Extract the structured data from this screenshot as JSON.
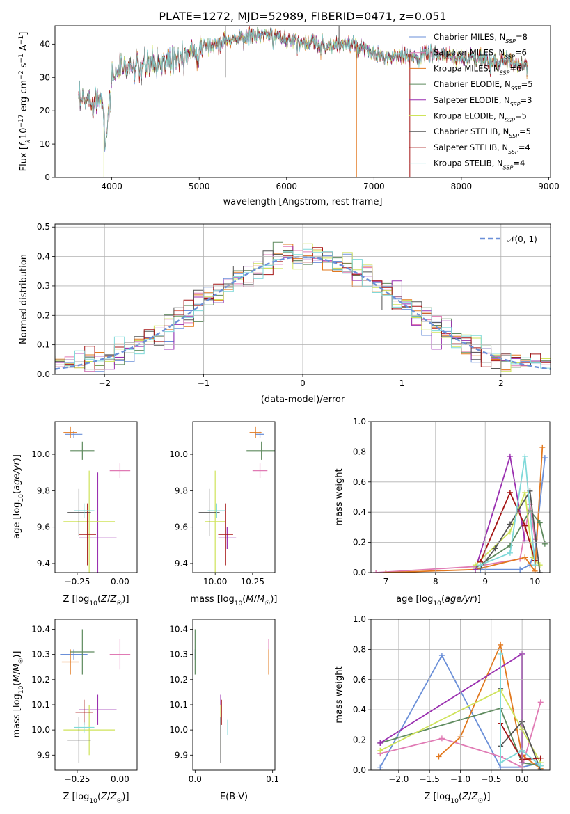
{
  "title": "PLATE=1272, MJD=52989, FIBERID=0471, z=0.051",
  "colors": {
    "Chabrier MILES": "#6a8fd8",
    "Salpeter MILES": "#e07ab4",
    "Kroupa MILES": "#e2781e",
    "Chabrier ELODIE": "#5e8a5e",
    "Salpeter ELODIE": "#9a2fb0",
    "Kroupa ELODIE": "#cfe35a",
    "Chabrier STELIB": "#555555",
    "Salpeter STELIB": "#a51515",
    "Kroupa STELIB": "#7fd9d9"
  },
  "chart_data": [
    {
      "id": "spectrum",
      "type": "line",
      "xlabel": "wavelength [Angstrom, rest frame]",
      "ylabel": "Flux [f_λ 10^-17 erg cm^-2 s^-1 A^-1]",
      "xlim": [
        3350,
        9020
      ],
      "ylim": [
        0,
        45.5
      ],
      "xticks": [
        4000,
        5000,
        6000,
        7000,
        8000,
        9000
      ],
      "yticks": [
        0,
        10,
        20,
        30,
        40
      ],
      "legend_position": "top-right",
      "legend": [
        {
          "name": "Chabrier MILES, N_SSP=8"
        },
        {
          "name": "Salpeter MILES, N_SSP=6"
        },
        {
          "name": "Kroupa MILES, N_SSP=6"
        },
        {
          "name": "Chabrier ELODIE, N_SSP=5"
        },
        {
          "name": "Salpeter ELODIE, N_SSP=3"
        },
        {
          "name": "Kroupa ELODIE, N_SSP=5"
        },
        {
          "name": "Chabrier STELIB, N_SSP=5"
        },
        {
          "name": "Salpeter STELIB, N_SSP=4"
        },
        {
          "name": "Kroupa STELIB, N_SSP=4"
        }
      ],
      "continuum_x": [
        3620,
        3700,
        3800,
        3900,
        3930,
        4000,
        4100,
        4300,
        4500,
        4700,
        4900,
        5100,
        5300,
        5500,
        5700,
        5900,
        6100,
        6300,
        6500,
        6700,
        6900,
        7100,
        7300,
        7500,
        7700,
        7900,
        8100,
        8300,
        8500,
        8760
      ],
      "continuum_y": [
        22,
        23,
        23.5,
        24,
        9,
        30,
        33,
        33,
        34,
        36,
        38,
        39,
        41,
        42,
        43,
        42,
        41,
        40,
        39.5,
        40,
        38,
        36,
        36,
        36.5,
        37,
        36,
        35.5,
        35,
        34.5,
        34
      ]
    },
    {
      "id": "residuals",
      "type": "histogram",
      "xlabel": "(data-model)/error",
      "ylabel": "Normed distribution",
      "xlim": [
        -2.5,
        2.5
      ],
      "ylim": [
        0,
        0.51
      ],
      "xticks": [
        -2,
        -1,
        0,
        1,
        2
      ],
      "yticks": [
        0.0,
        0.1,
        0.2,
        0.3,
        0.4,
        0.5
      ],
      "legend_position": "top-right",
      "legend": [
        {
          "name": "𝒩(0, 1)"
        }
      ],
      "bin_width": 0.1
    },
    {
      "id": "age-vs-Z",
      "type": "errorbar",
      "xlabel": "Z [log10(Z/Z☉)]",
      "ylabel": "age [log10(age/yr)]",
      "xlim": [
        -0.38,
        0.1
      ],
      "ylim": [
        9.35,
        10.18
      ],
      "xticks": [
        -0.25,
        0.0
      ],
      "yticks": [
        9.4,
        9.6,
        9.8,
        10.0
      ],
      "points": [
        {
          "name": "Chabrier MILES",
          "x": -0.27,
          "y": 10.11,
          "xerr": 0.05,
          "yerr": 0.02
        },
        {
          "name": "Salpeter MILES",
          "x": 0.0,
          "y": 9.91,
          "xerr": 0.06,
          "yerr": 0.04
        },
        {
          "name": "Kroupa MILES",
          "x": -0.29,
          "y": 10.12,
          "xerr": 0.04,
          "yerr": 0.03
        },
        {
          "name": "Chabrier ELODIE",
          "x": -0.22,
          "y": 10.02,
          "xerr": 0.07,
          "yerr": 0.05
        },
        {
          "name": "Salpeter ELODIE",
          "x": -0.13,
          "y": 9.54,
          "xerr": 0.11,
          "yerr": 0.36
        },
        {
          "name": "Kroupa ELODIE",
          "x": -0.18,
          "y": 9.63,
          "xerr": 0.15,
          "yerr": 0.28
        },
        {
          "name": "Chabrier STELIB",
          "x": -0.24,
          "y": 9.68,
          "xerr": 0.07,
          "yerr": 0.13
        },
        {
          "name": "Salpeter STELIB",
          "x": -0.19,
          "y": 9.56,
          "xerr": 0.05,
          "yerr": 0.17
        },
        {
          "name": "Kroupa STELIB",
          "x": -0.21,
          "y": 9.69,
          "xerr": 0.06,
          "yerr": 0.04
        }
      ]
    },
    {
      "id": "age-vs-mass",
      "type": "errorbar",
      "xlabel": "mass [log10(M/M☉)]",
      "xlim": [
        9.85,
        10.4
      ],
      "ylim": [
        9.35,
        10.18
      ],
      "xticks": [
        10.0,
        10.25
      ],
      "yticks": [
        9.4,
        9.6,
        9.8,
        10.0
      ],
      "points": [
        {
          "name": "Chabrier MILES",
          "x": 10.3,
          "y": 10.11,
          "xerr": 0.03,
          "yerr": 0.02
        },
        {
          "name": "Salpeter MILES",
          "x": 10.3,
          "y": 9.91,
          "xerr": 0.05,
          "yerr": 0.04
        },
        {
          "name": "Kroupa MILES",
          "x": 10.27,
          "y": 10.12,
          "xerr": 0.04,
          "yerr": 0.03
        },
        {
          "name": "Chabrier ELODIE",
          "x": 10.31,
          "y": 10.02,
          "xerr": 0.1,
          "yerr": 0.05
        },
        {
          "name": "Salpeter ELODIE",
          "x": 10.08,
          "y": 9.54,
          "xerr": 0.06,
          "yerr": 0.06
        },
        {
          "name": "Kroupa ELODIE",
          "x": 10.0,
          "y": 9.63,
          "xerr": 0.07,
          "yerr": 0.28
        },
        {
          "name": "Chabrier STELIB",
          "x": 9.96,
          "y": 9.68,
          "xerr": 0.07,
          "yerr": 0.13
        },
        {
          "name": "Salpeter STELIB",
          "x": 10.07,
          "y": 9.56,
          "xerr": 0.05,
          "yerr": 0.17
        },
        {
          "name": "Kroupa STELIB",
          "x": 10.01,
          "y": 9.69,
          "xerr": 0.06,
          "yerr": 0.04
        }
      ]
    },
    {
      "id": "massweight-vs-age",
      "type": "line",
      "xlabel": "age [log10(age/yr)]",
      "ylabel": "mass weight",
      "xlim": [
        6.7,
        10.3
      ],
      "ylim": [
        0,
        1.0
      ],
      "xticks": [
        7,
        8,
        9,
        10
      ],
      "yticks": [
        0.0,
        0.2,
        0.4,
        0.6,
        0.8,
        1.0
      ],
      "grid": true,
      "series": [
        {
          "name": "Chabrier MILES",
          "x": [
            8.9,
            9.7,
            9.9,
            10.0,
            10.2
          ],
          "y": [
            0.02,
            0.02,
            0.05,
            0.15,
            0.76
          ]
        },
        {
          "name": "Salpeter MILES",
          "x": [
            6.8,
            8.8,
            9.7,
            9.9,
            10.0
          ],
          "y": [
            0.0,
            0.04,
            0.09,
            0.45,
            0.22
          ]
        },
        {
          "name": "Kroupa MILES",
          "x": [
            7.0,
            8.8,
            9.8,
            10.0,
            10.15
          ],
          "y": [
            0.0,
            0.02,
            0.1,
            0.01,
            0.83
          ]
        },
        {
          "name": "Chabrier ELODIE",
          "x": [
            8.8,
            9.5,
            9.9,
            10.1,
            10.2
          ],
          "y": [
            0.03,
            0.18,
            0.41,
            0.33,
            0.19
          ]
        },
        {
          "name": "Salpeter ELODIE",
          "x": [
            8.8,
            9.5,
            9.8
          ],
          "y": [
            0.02,
            0.77,
            0.21
          ]
        },
        {
          "name": "Kroupa ELODIE",
          "x": [
            8.8,
            9.5,
            9.8,
            9.95,
            10.1
          ],
          "y": [
            0.05,
            0.27,
            0.53,
            0.1,
            0.05
          ]
        },
        {
          "name": "Chabrier STELIB",
          "x": [
            8.9,
            9.2,
            9.5,
            9.9,
            10.1
          ],
          "y": [
            0.03,
            0.16,
            0.32,
            0.54,
            0.0
          ]
        },
        {
          "name": "Salpeter STELIB",
          "x": [
            8.9,
            9.5,
            9.8,
            10.0
          ],
          "y": [
            0.07,
            0.53,
            0.31,
            0.08
          ]
        },
        {
          "name": "Kroupa STELIB",
          "x": [
            8.9,
            9.5,
            9.8,
            10.0
          ],
          "y": [
            0.05,
            0.13,
            0.77,
            0.05
          ]
        }
      ]
    },
    {
      "id": "mass-vs-Z",
      "type": "errorbar",
      "xlabel": "Z [log10(Z/Z☉)]",
      "ylabel": "mass [log10(M/M☉)]",
      "xlim": [
        -0.38,
        0.1
      ],
      "ylim": [
        9.84,
        10.44
      ],
      "xticks": [
        -0.25,
        0.0
      ],
      "yticks": [
        9.9,
        10.0,
        10.1,
        10.2,
        10.3,
        10.4
      ],
      "points": [
        {
          "name": "Chabrier MILES",
          "x": -0.27,
          "y": 10.3,
          "xerr": 0.08,
          "yerr": 0.02
        },
        {
          "name": "Salpeter MILES",
          "x": 0.0,
          "y": 10.3,
          "xerr": 0.06,
          "yerr": 0.06
        },
        {
          "name": "Kroupa MILES",
          "x": -0.29,
          "y": 10.27,
          "xerr": 0.05,
          "yerr": 0.05
        },
        {
          "name": "Chabrier ELODIE",
          "x": -0.22,
          "y": 10.31,
          "xerr": 0.07,
          "yerr": 0.09
        },
        {
          "name": "Salpeter ELODIE",
          "x": -0.13,
          "y": 10.08,
          "xerr": 0.11,
          "yerr": 0.06
        },
        {
          "name": "Kroupa ELODIE",
          "x": -0.18,
          "y": 10.0,
          "xerr": 0.15,
          "yerr": 0.1
        },
        {
          "name": "Chabrier STELIB",
          "x": -0.24,
          "y": 9.96,
          "xerr": 0.07,
          "yerr": 0.09
        },
        {
          "name": "Salpeter STELIB",
          "x": -0.21,
          "y": 10.07,
          "xerr": 0.05,
          "yerr": 0.05
        },
        {
          "name": "Kroupa STELIB",
          "x": -0.21,
          "y": 10.01,
          "xerr": 0.06,
          "yerr": 0.02
        }
      ]
    },
    {
      "id": "mass-vs-ebv",
      "type": "errorbar",
      "xlabel": "E(B-V)",
      "xlim": [
        -0.003,
        0.103
      ],
      "ylim": [
        9.84,
        10.44
      ],
      "xticks": [
        0.0,
        0.1
      ],
      "yticks": [
        9.9,
        10.0,
        10.1,
        10.2,
        10.3,
        10.4
      ],
      "points": [
        {
          "name": "Chabrier MILES",
          "x": 0.0,
          "y": 10.3,
          "xerr": 0.0,
          "yerr": 0.02
        },
        {
          "name": "Salpeter MILES",
          "x": 0.095,
          "y": 10.3,
          "xerr": 0.0,
          "yerr": 0.06
        },
        {
          "name": "Kroupa MILES",
          "x": 0.095,
          "y": 10.27,
          "xerr": 0.0,
          "yerr": 0.05
        },
        {
          "name": "Chabrier ELODIE",
          "x": 0.0,
          "y": 10.31,
          "xerr": 0.0,
          "yerr": 0.09
        },
        {
          "name": "Salpeter ELODIE",
          "x": 0.033,
          "y": 10.08,
          "xerr": 0.0,
          "yerr": 0.06
        },
        {
          "name": "Kroupa ELODIE",
          "x": 0.033,
          "y": 10.0,
          "xerr": 0.0,
          "yerr": 0.1
        },
        {
          "name": "Chabrier STELIB",
          "x": 0.033,
          "y": 9.96,
          "xerr": 0.0,
          "yerr": 0.09
        },
        {
          "name": "Salpeter STELIB",
          "x": 0.034,
          "y": 10.07,
          "xerr": 0.0,
          "yerr": 0.05
        },
        {
          "name": "Kroupa STELIB",
          "x": 0.042,
          "y": 10.01,
          "xerr": 0.0,
          "yerr": 0.03
        }
      ]
    },
    {
      "id": "massweight-vs-Z",
      "type": "line",
      "xlabel": "Z [log10(Z/Z☉)]",
      "ylabel": "mass weight",
      "xlim": [
        -2.45,
        0.45
      ],
      "ylim": [
        0,
        1.0
      ],
      "xticks": [
        -2.0,
        -1.5,
        -1.0,
        -0.5,
        0.0
      ],
      "yticks": [
        0.0,
        0.2,
        0.4,
        0.6,
        0.8,
        1.0
      ],
      "grid": true,
      "series": [
        {
          "name": "Chabrier MILES",
          "x": [
            -2.3,
            -1.3,
            -0.35,
            0.0,
            0.3
          ],
          "y": [
            0.02,
            0.76,
            0.02,
            0.02,
            0.05
          ]
        },
        {
          "name": "Salpeter MILES",
          "x": [
            -2.3,
            -1.3,
            -0.35,
            0.0,
            0.3
          ],
          "y": [
            0.11,
            0.21,
            0.09,
            0.02,
            0.45
          ]
        },
        {
          "name": "Kroupa MILES",
          "x": [
            -1.35,
            -1.0,
            -0.35,
            0.0,
            0.3
          ],
          "y": [
            0.09,
            0.22,
            0.83,
            0.1,
            0.01
          ]
        },
        {
          "name": "Chabrier ELODIE",
          "x": [
            -2.3,
            -0.35,
            0.0,
            0.3
          ],
          "y": [
            0.18,
            0.41,
            0.05,
            0.03
          ]
        },
        {
          "name": "Salpeter ELODIE",
          "x": [
            -2.3,
            0.0,
            0.0
          ],
          "y": [
            0.18,
            0.77,
            0.05
          ]
        },
        {
          "name": "Kroupa ELODIE",
          "x": [
            -2.3,
            -0.35,
            0.0,
            0.3
          ],
          "y": [
            0.13,
            0.53,
            0.27,
            0.05
          ]
        },
        {
          "name": "Chabrier STELIB",
          "x": [
            -0.35,
            -0.35,
            0.0,
            0.3
          ],
          "y": [
            0.54,
            0.16,
            0.32,
            0.0
          ]
        },
        {
          "name": "Salpeter STELIB",
          "x": [
            -0.35,
            0.0,
            0.3
          ],
          "y": [
            0.31,
            0.07,
            0.08
          ]
        },
        {
          "name": "Kroupa STELIB",
          "x": [
            -0.35,
            -0.35,
            0.0,
            0.3
          ],
          "y": [
            0.77,
            0.05,
            0.13,
            0.03
          ]
        }
      ]
    }
  ]
}
